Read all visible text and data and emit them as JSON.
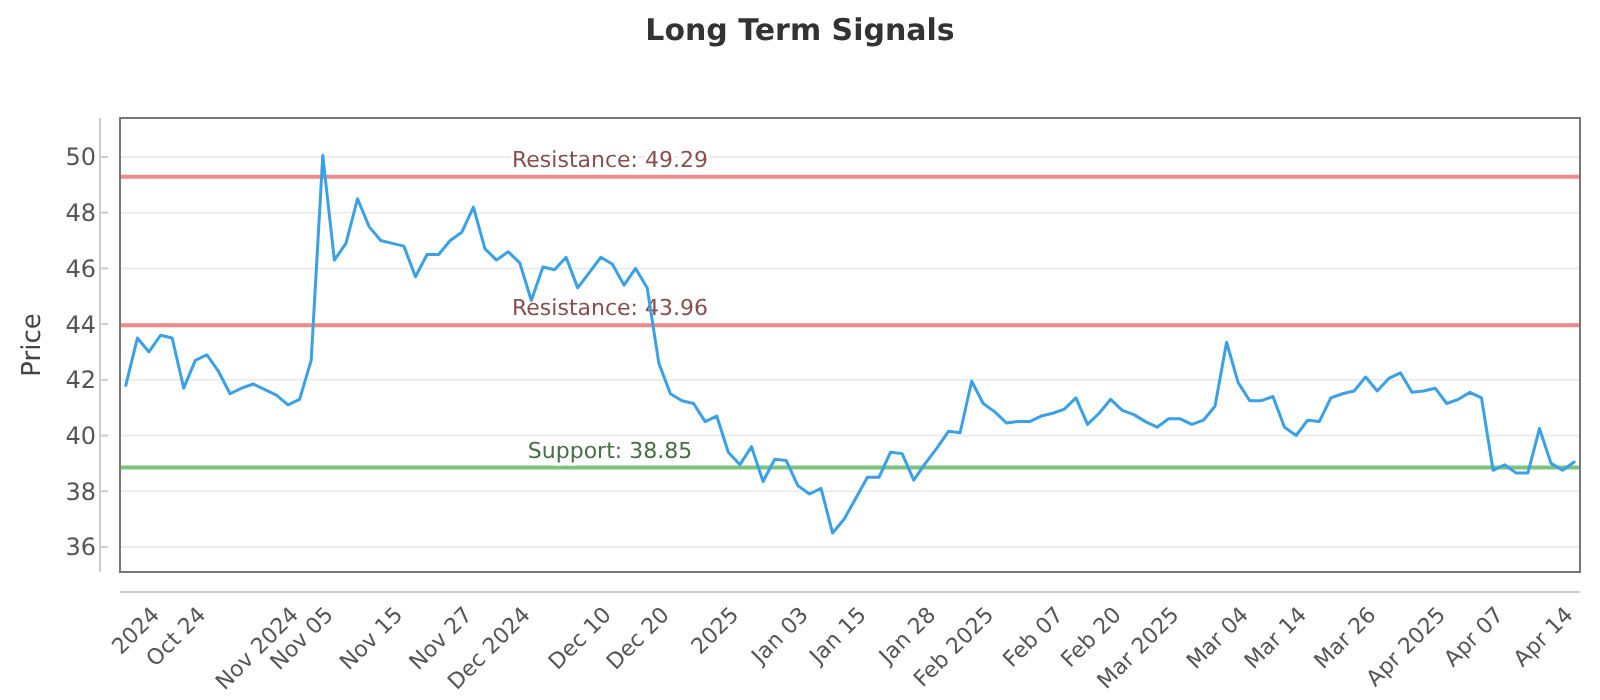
{
  "chart_data": {
    "type": "line",
    "title": "Long Term Signals",
    "ylabel": "Price",
    "categories": [
      null,
      null,
      null,
      "2024",
      null,
      null,
      null,
      "Oct 24",
      null,
      null,
      null,
      null,
      null,
      null,
      null,
      "Nov 2024",
      null,
      null,
      "Nov 05",
      null,
      null,
      null,
      null,
      null,
      "Nov 15",
      null,
      null,
      null,
      null,
      null,
      "Nov 27",
      null,
      null,
      null,
      null,
      "Dec 2024",
      null,
      null,
      null,
      null,
      null,
      null,
      "Dec 10",
      null,
      null,
      null,
      null,
      "Dec 20",
      null,
      null,
      null,
      null,
      null,
      "2025",
      null,
      null,
      null,
      null,
      null,
      "Jan 03",
      null,
      null,
      null,
      null,
      "Jan 15",
      null,
      null,
      null,
      null,
      null,
      "Jan 28",
      null,
      null,
      null,
      null,
      "Feb 2025",
      null,
      null,
      null,
      null,
      null,
      "Feb 07",
      null,
      null,
      null,
      null,
      "Feb 20",
      null,
      null,
      null,
      null,
      "Mar 2025",
      null,
      null,
      null,
      null,
      null,
      "Mar 04",
      null,
      null,
      null,
      null,
      "Mar 14",
      null,
      null,
      null,
      null,
      null,
      "Mar 26",
      null,
      null,
      null,
      null,
      null,
      "Apr 2025",
      null,
      null,
      null,
      null,
      "Apr 07",
      null,
      null,
      null,
      null,
      null,
      "Apr 14"
    ],
    "series": [
      {
        "color": "#3aa0e8",
        "values": [
          41.8,
          43.5,
          43.0,
          43.6,
          43.5,
          41.7,
          42.7,
          42.9,
          42.3,
          41.5,
          41.7,
          41.85,
          41.65,
          41.45,
          41.1,
          41.3,
          42.7,
          50.05,
          46.3,
          46.9,
          48.5,
          47.5,
          47.0,
          46.9,
          46.8,
          45.7,
          46.5,
          46.5,
          47.0,
          47.3,
          48.2,
          46.7,
          46.3,
          46.6,
          46.2,
          44.85,
          46.05,
          45.95,
          46.4,
          45.3,
          45.85,
          46.4,
          46.15,
          45.4,
          46.0,
          45.3,
          42.6,
          41.5,
          41.25,
          41.15,
          40.5,
          40.7,
          39.4,
          38.95,
          39.6,
          38.35,
          39.15,
          39.1,
          38.2,
          37.9,
          38.1,
          36.5,
          37.0,
          37.75,
          38.5,
          38.5,
          39.4,
          39.35,
          38.4,
          39.0,
          39.55,
          40.15,
          40.1,
          41.95,
          41.15,
          40.85,
          40.45,
          40.5,
          40.5,
          40.7,
          40.8,
          40.95,
          41.35,
          40.4,
          40.8,
          41.3,
          40.9,
          40.75,
          40.5,
          40.3,
          40.6,
          40.6,
          40.4,
          40.55,
          41.05,
          43.35,
          41.9,
          41.25,
          41.25,
          41.4,
          40.3,
          40.0,
          40.55,
          40.5,
          41.35,
          41.5,
          41.6,
          42.1,
          41.6,
          42.05,
          42.25,
          41.55,
          41.6,
          41.7,
          41.15,
          41.3,
          41.55,
          41.35,
          38.75,
          38.95,
          38.65,
          38.65,
          40.25,
          39.0,
          38.75,
          39.05
        ]
      }
    ],
    "ylim": [
      35.1,
      51.4
    ],
    "yticks": [
      36,
      38,
      40,
      42,
      44,
      46,
      48,
      50
    ],
    "grid": "y",
    "marker": "none",
    "line_style": "solid",
    "ref_lines": [
      {
        "axis": "y",
        "value": 49.29,
        "label": "Resistance: 49.29",
        "color": "#f08a8a"
      },
      {
        "axis": "y",
        "value": 43.96,
        "label": "Resistance: 43.96",
        "color": "#f08a8a"
      },
      {
        "axis": "y",
        "value": 38.85,
        "label": "Support: 38.85",
        "color": "#7cc47c"
      }
    ]
  }
}
